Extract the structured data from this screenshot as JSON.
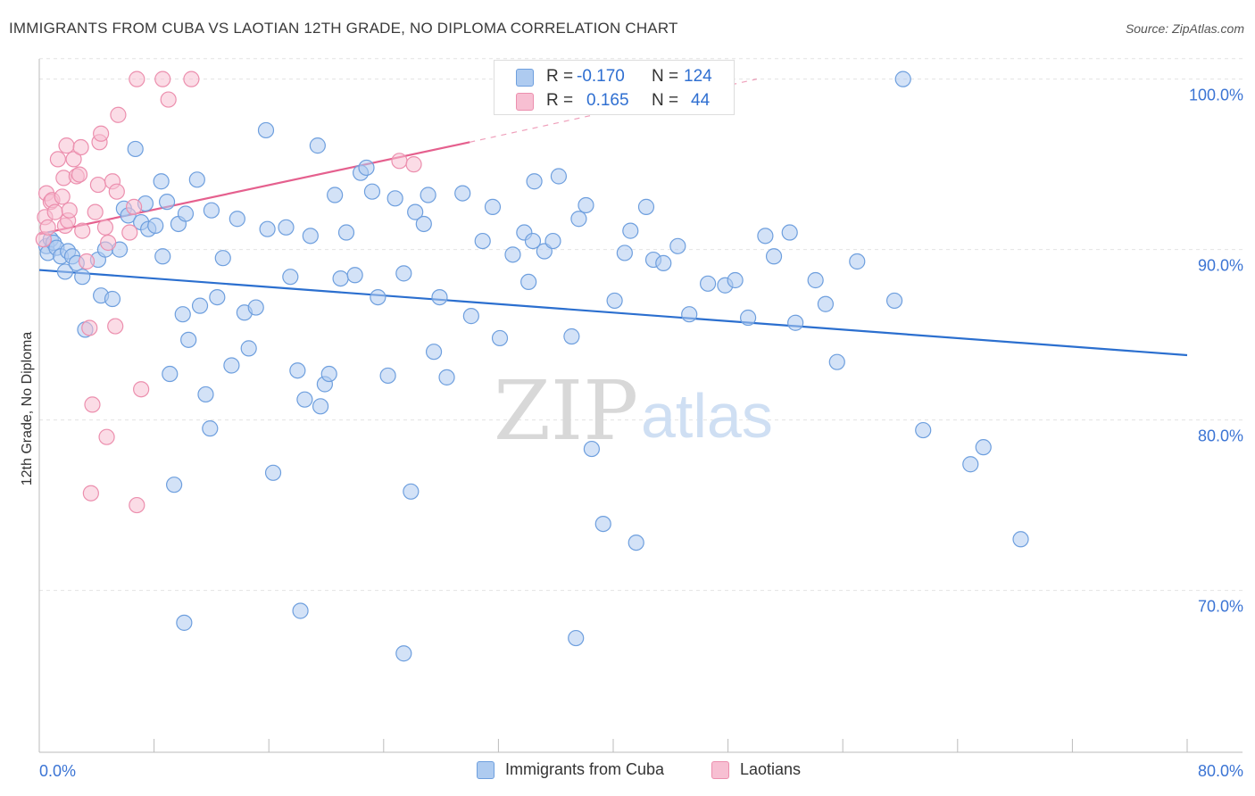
{
  "title": "IMMIGRANTS FROM CUBA VS LAOTIAN 12TH GRADE, NO DIPLOMA CORRELATION CHART",
  "source": "Source: ZipAtlas.com",
  "watermark": {
    "zip": "ZIP",
    "atlas": "atlas"
  },
  "legend_top": [
    {
      "r_label": "R =",
      "r_value": "-0.170",
      "n_label": "N =",
      "n_value": "124"
    },
    {
      "r_label": "R =",
      "r_value": "0.165",
      "n_label": "N =",
      "n_value": "44"
    }
  ],
  "legend_bottom": [
    "Immigrants from Cuba",
    "Laotians"
  ],
  "colors": {
    "blue_fill": "#aecbf0",
    "blue_stroke": "#6e9fde",
    "blue_line": "#2b6fcf",
    "pink_fill": "#f7bfd2",
    "pink_stroke": "#ec8fae",
    "pink_line": "#e5608e",
    "tick_text": "#3b74d4",
    "grid": "#e2e2e2",
    "axis": "#bbbbbb"
  },
  "chart_data": {
    "type": "scatter",
    "title": "IMMIGRANTS FROM CUBA VS LAOTIAN 12TH GRADE, NO DIPLOMA CORRELATION CHART",
    "xlabel": "",
    "ylabel": "12th Grade, No Diploma",
    "xlim": [
      0,
      80
    ],
    "ylim": [
      60.5,
      101.5
    ],
    "x_tick_labels": [
      "0.0%",
      "80.0%"
    ],
    "y_ticks": [
      70,
      80,
      90,
      100
    ],
    "y_tick_labels": [
      "70.0%",
      "80.0%",
      "90.0%",
      "100.0%"
    ],
    "grid": true,
    "series": [
      {
        "name": "Immigrants from Cuba",
        "color": "#6e9fde",
        "R": -0.17,
        "N": 124,
        "trend": {
          "x": [
            0,
            80
          ],
          "y": [
            88.8,
            83.8
          ]
        },
        "points": [
          [
            0.5,
            90.2
          ],
          [
            0.6,
            89.8
          ],
          [
            0.8,
            90.6
          ],
          [
            1.0,
            90.4
          ],
          [
            1.2,
            90.1
          ],
          [
            1.5,
            89.6
          ],
          [
            1.8,
            88.7
          ],
          [
            2.0,
            89.9
          ],
          [
            2.3,
            89.6
          ],
          [
            2.6,
            89.2
          ],
          [
            3.0,
            88.4
          ],
          [
            3.2,
            85.3
          ],
          [
            4.1,
            89.4
          ],
          [
            4.6,
            90.0
          ],
          [
            4.3,
            87.3
          ],
          [
            5.1,
            87.1
          ],
          [
            5.6,
            90.0
          ],
          [
            5.9,
            92.4
          ],
          [
            6.2,
            92.0
          ],
          [
            6.7,
            95.9
          ],
          [
            7.1,
            91.6
          ],
          [
            7.4,
            92.7
          ],
          [
            7.6,
            91.2
          ],
          [
            8.1,
            91.4
          ],
          [
            8.5,
            94.0
          ],
          [
            8.9,
            92.8
          ],
          [
            8.6,
            89.6
          ],
          [
            9.1,
            82.7
          ],
          [
            10.0,
            86.2
          ],
          [
            10.4,
            84.7
          ],
          [
            9.7,
            91.5
          ],
          [
            10.2,
            92.1
          ],
          [
            11.0,
            94.1
          ],
          [
            11.6,
            81.5
          ],
          [
            12.0,
            92.3
          ],
          [
            11.2,
            86.7
          ],
          [
            12.4,
            87.2
          ],
          [
            12.8,
            89.5
          ],
          [
            13.4,
            83.2
          ],
          [
            13.8,
            91.8
          ],
          [
            14.3,
            86.3
          ],
          [
            14.6,
            84.2
          ],
          [
            15.1,
            86.6
          ],
          [
            15.8,
            97.0
          ],
          [
            15.9,
            91.2
          ],
          [
            16.3,
            76.9
          ],
          [
            17.2,
            91.3
          ],
          [
            17.5,
            88.4
          ],
          [
            18.0,
            82.9
          ],
          [
            18.5,
            81.2
          ],
          [
            18.9,
            90.8
          ],
          [
            19.4,
            96.1
          ],
          [
            19.9,
            82.1
          ],
          [
            20.2,
            82.7
          ],
          [
            20.6,
            93.2
          ],
          [
            21.0,
            88.3
          ],
          [
            21.4,
            91.0
          ],
          [
            22.0,
            88.5
          ],
          [
            22.4,
            94.5
          ],
          [
            23.2,
            93.4
          ],
          [
            22.8,
            94.8
          ],
          [
            23.6,
            87.2
          ],
          [
            24.3,
            82.6
          ],
          [
            24.8,
            93.0
          ],
          [
            25.4,
            88.6
          ],
          [
            25.9,
            75.8
          ],
          [
            26.2,
            92.2
          ],
          [
            26.8,
            91.5
          ],
          [
            27.1,
            93.2
          ],
          [
            27.5,
            84.0
          ],
          [
            27.9,
            87.2
          ],
          [
            28.4,
            82.5
          ],
          [
            29.5,
            93.3
          ],
          [
            30.1,
            86.1
          ],
          [
            30.9,
            90.5
          ],
          [
            31.6,
            92.5
          ],
          [
            32.1,
            84.8
          ],
          [
            33.0,
            89.7
          ],
          [
            33.8,
            91.0
          ],
          [
            34.1,
            88.1
          ],
          [
            34.5,
            94.0
          ],
          [
            34.4,
            90.5
          ],
          [
            35.2,
            89.9
          ],
          [
            35.8,
            90.5
          ],
          [
            36.2,
            94.3
          ],
          [
            37.1,
            84.9
          ],
          [
            37.6,
            91.8
          ],
          [
            38.1,
            92.6
          ],
          [
            38.5,
            78.3
          ],
          [
            39.3,
            73.9
          ],
          [
            40.1,
            87.0
          ],
          [
            40.8,
            89.8
          ],
          [
            41.2,
            91.1
          ],
          [
            42.3,
            92.5
          ],
          [
            41.6,
            72.8
          ],
          [
            42.8,
            89.4
          ],
          [
            43.5,
            89.2
          ],
          [
            44.5,
            90.2
          ],
          [
            45.3,
            86.2
          ],
          [
            46.6,
            88.0
          ],
          [
            47.8,
            87.9
          ],
          [
            48.5,
            88.2
          ],
          [
            49.4,
            86.0
          ],
          [
            50.6,
            90.8
          ],
          [
            51.2,
            89.6
          ],
          [
            52.3,
            91.0
          ],
          [
            52.7,
            85.7
          ],
          [
            54.1,
            88.2
          ],
          [
            54.8,
            86.8
          ],
          [
            55.6,
            83.4
          ],
          [
            57.0,
            89.3
          ],
          [
            59.6,
            87.0
          ],
          [
            60.2,
            100.0
          ],
          [
            61.6,
            79.4
          ],
          [
            64.9,
            77.4
          ],
          [
            65.8,
            78.4
          ],
          [
            68.4,
            73.0
          ],
          [
            10.1,
            68.1
          ],
          [
            18.2,
            68.8
          ],
          [
            25.4,
            66.3
          ],
          [
            37.4,
            67.2
          ],
          [
            9.4,
            76.2
          ],
          [
            11.9,
            79.5
          ],
          [
            19.6,
            80.8
          ]
        ]
      },
      {
        "name": "Laotians",
        "color": "#ec8fae",
        "R": 0.165,
        "N": 44,
        "trend": {
          "x": [
            0,
            30
          ],
          "y": [
            90.9,
            96.3
          ]
        },
        "trend_dashed": {
          "x": [
            30,
            50
          ],
          "y": [
            96.3,
            100.0
          ]
        },
        "points": [
          [
            0.3,
            90.6
          ],
          [
            0.4,
            91.9
          ],
          [
            0.5,
            93.3
          ],
          [
            0.6,
            91.3
          ],
          [
            0.8,
            92.8
          ],
          [
            0.9,
            92.9
          ],
          [
            1.1,
            92.2
          ],
          [
            1.3,
            95.3
          ],
          [
            1.6,
            93.1
          ],
          [
            1.7,
            94.2
          ],
          [
            1.8,
            91.4
          ],
          [
            1.9,
            96.1
          ],
          [
            2.0,
            91.7
          ],
          [
            2.1,
            92.3
          ],
          [
            2.4,
            95.3
          ],
          [
            2.6,
            94.3
          ],
          [
            2.8,
            94.4
          ],
          [
            2.9,
            96.0
          ],
          [
            3.0,
            91.1
          ],
          [
            3.3,
            89.3
          ],
          [
            3.5,
            85.4
          ],
          [
            3.7,
            80.9
          ],
          [
            3.9,
            92.2
          ],
          [
            4.1,
            93.8
          ],
          [
            4.2,
            96.3
          ],
          [
            4.3,
            96.8
          ],
          [
            4.6,
            91.3
          ],
          [
            4.8,
            90.4
          ],
          [
            5.1,
            94.0
          ],
          [
            5.3,
            85.5
          ],
          [
            5.4,
            93.4
          ],
          [
            5.5,
            97.9
          ],
          [
            6.3,
            91.0
          ],
          [
            6.6,
            92.5
          ],
          [
            6.8,
            100.0
          ],
          [
            7.1,
            81.8
          ],
          [
            8.6,
            100.0
          ],
          [
            9.0,
            98.8
          ],
          [
            10.6,
            100.0
          ],
          [
            4.7,
            79.0
          ],
          [
            3.6,
            75.7
          ],
          [
            6.8,
            75.0
          ],
          [
            25.1,
            95.2
          ],
          [
            26.1,
            95.0
          ]
        ]
      }
    ]
  }
}
